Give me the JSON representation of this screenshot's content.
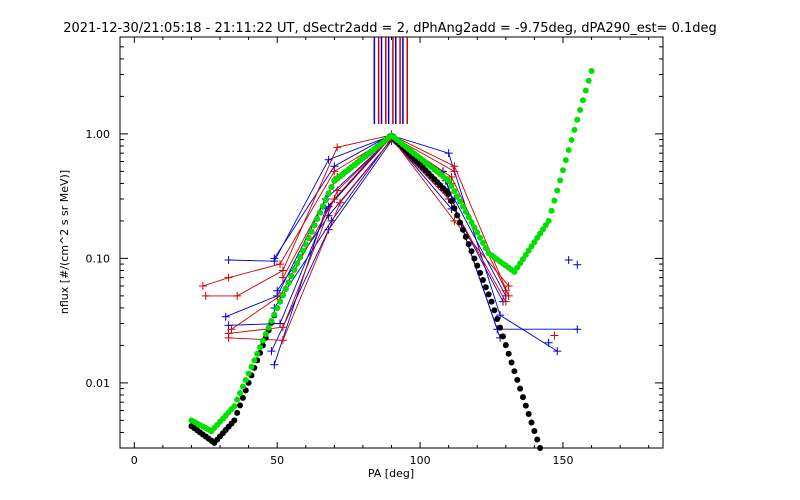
{
  "chart_data": {
    "type": "scatter",
    "title": "2021-12-30/21:05:18 - 21:11:22 UT, dSectr2add = 2, dPhAng2add = -9.75deg, dPA290_est=   0.1deg",
    "xlabel": "PA [deg]",
    "ylabel": "nflux [#/(cm^2 s sr MeV)]",
    "xlim": [
      -5,
      185
    ],
    "ylim": [
      0.003,
      6.0
    ],
    "yscale": "log",
    "grid": false,
    "legend": "none",
    "x_ticks": [
      {
        "value": 0,
        "label": "0"
      },
      {
        "value": 50,
        "label": "50"
      },
      {
        "value": 100,
        "label": "100"
      },
      {
        "value": 150,
        "label": "150"
      }
    ],
    "y_ticks": [
      {
        "value": 0.01,
        "label": "0.01"
      },
      {
        "value": 0.1,
        "label": "0.10"
      },
      {
        "value": 1.0,
        "label": "1.00"
      }
    ],
    "colors": {
      "blue": "#0000cc",
      "red": "#cc0000",
      "green": "#00e000",
      "black": "#000000"
    },
    "vertical_markers": {
      "y_range": [
        1.2,
        6.0
      ],
      "lines": [
        {
          "x": 84,
          "color": "#0000cc"
        },
        {
          "x": 85.5,
          "color": "#cc0000"
        },
        {
          "x": 86.5,
          "color": "#0000cc"
        },
        {
          "x": 88,
          "color": "#cc0000"
        },
        {
          "x": 89,
          "color": "#0000cc"
        },
        {
          "x": 90.5,
          "color": "#cc0000"
        },
        {
          "x": 91.5,
          "color": "#0000cc"
        },
        {
          "x": 93,
          "color": "#cc0000"
        },
        {
          "x": 94,
          "color": "#0000cc"
        },
        {
          "x": 95.5,
          "color": "#cc0000"
        }
      ]
    },
    "data_lines": [
      {
        "color": "#0000cc",
        "points": [
          [
            33,
            0.097
          ],
          [
            49,
            0.095
          ],
          [
            68,
            0.62
          ],
          [
            90,
            0.97
          ],
          [
            110,
            0.7
          ],
          [
            128,
            0.035
          ],
          [
            148,
            0.018
          ]
        ]
      },
      {
        "color": "#0000cc",
        "points": [
          [
            32,
            0.034
          ],
          [
            50,
            0.05
          ],
          [
            67,
            0.3
          ],
          [
            90,
            0.93
          ],
          [
            108,
            0.5
          ],
          [
            127,
            0.027
          ],
          [
            155,
            0.027
          ]
        ]
      },
      {
        "color": "#0000cc",
        "points": [
          [
            33,
            0.029
          ],
          [
            51,
            0.03
          ],
          [
            68,
            0.26
          ],
          [
            90,
            0.95
          ],
          [
            109,
            0.42
          ],
          [
            128,
            0.023
          ]
        ]
      },
      {
        "color": "#0000cc",
        "points": [
          [
            49,
            0.1
          ],
          [
            70,
            0.55
          ],
          [
            90,
            0.99
          ],
          [
            112,
            0.3
          ],
          [
            130,
            0.05
          ]
        ]
      },
      {
        "color": "#0000cc",
        "points": [
          [
            50,
            0.055
          ],
          [
            68,
            0.22
          ],
          [
            90,
            0.9
          ],
          [
            110,
            0.3
          ],
          [
            129,
            0.045
          ]
        ]
      },
      {
        "color": "#0000cc",
        "points": [
          [
            49,
            0.04
          ],
          [
            69,
            0.2
          ],
          [
            90,
            0.92
          ],
          [
            111,
            0.25
          ]
        ]
      },
      {
        "color": "#0000cc",
        "points": [
          [
            48,
            0.018
          ],
          [
            68,
            0.17
          ],
          [
            90,
            0.88
          ],
          [
            109,
            0.35
          ]
        ]
      },
      {
        "color": "#0000cc",
        "points": [
          [
            49,
            0.014
          ],
          [
            67,
            0.25
          ],
          [
            90,
            0.96
          ],
          [
            108,
            0.5
          ]
        ]
      },
      {
        "color": "#cc0000",
        "points": [
          [
            25,
            0.05
          ],
          [
            36,
            0.05
          ],
          [
            52,
            0.08
          ],
          [
            71,
            0.78
          ],
          [
            90,
            0.98
          ],
          [
            112,
            0.55
          ],
          [
            131,
            0.05
          ]
        ]
      },
      {
        "color": "#cc0000",
        "points": [
          [
            24,
            0.06
          ],
          [
            33,
            0.07
          ],
          [
            51,
            0.09
          ],
          [
            70,
            0.5
          ],
          [
            90,
            0.95
          ],
          [
            111,
            0.45
          ],
          [
            130,
            0.055
          ]
        ]
      },
      {
        "color": "#cc0000",
        "points": [
          [
            33,
            0.025
          ],
          [
            52,
            0.028
          ],
          [
            71,
            0.35
          ],
          [
            90,
            0.93
          ],
          [
            112,
            0.2
          ],
          [
            131,
            0.06
          ]
        ]
      },
      {
        "color": "#cc0000",
        "points": [
          [
            33,
            0.023
          ],
          [
            52,
            0.022
          ],
          [
            72,
            0.28
          ],
          [
            90,
            0.9
          ],
          [
            110,
            0.3
          ],
          [
            130,
            0.045
          ]
        ]
      },
      {
        "color": "#cc0000",
        "points": [
          [
            34,
            0.027
          ],
          [
            51,
            0.05
          ],
          [
            70,
            0.3
          ],
          [
            90,
            0.97
          ],
          [
            111,
            0.4
          ]
        ]
      },
      {
        "color": "#cc0000",
        "points": [
          [
            52,
            0.07
          ],
          [
            71,
            0.45
          ],
          [
            90,
            0.96
          ],
          [
            112,
            0.5
          ]
        ]
      }
    ],
    "isolated_points": [
      {
        "color": "#0000cc",
        "x": 152,
        "y": 0.097
      },
      {
        "color": "#0000cc",
        "x": 155,
        "y": 0.089
      },
      {
        "color": "#cc0000",
        "x": 147,
        "y": 0.024
      },
      {
        "color": "#0000cc",
        "x": 145,
        "y": 0.021
      }
    ],
    "black_fit": {
      "color": "#000000",
      "x_range": [
        20,
        142
      ],
      "description_values": [
        [
          20,
          0.0045
        ],
        [
          28,
          0.0033
        ],
        [
          35,
          0.005
        ],
        [
          50,
          0.04
        ],
        [
          70,
          0.42
        ],
        [
          90,
          0.97
        ],
        [
          110,
          0.33
        ],
        [
          125,
          0.045
        ],
        [
          135,
          0.009
        ],
        [
          142,
          0.003
        ]
      ]
    },
    "green_fit": {
      "color": "#00e000",
      "x_range": [
        20,
        160
      ],
      "description_values": [
        [
          20,
          0.005
        ],
        [
          27,
          0.0041
        ],
        [
          35,
          0.0065
        ],
        [
          50,
          0.04
        ],
        [
          70,
          0.42
        ],
        [
          90,
          0.97
        ],
        [
          110,
          0.42
        ],
        [
          124,
          0.11
        ],
        [
          133,
          0.078
        ],
        [
          145,
          0.2
        ],
        [
          155,
          1.3
        ],
        [
          160,
          3.2
        ]
      ]
    }
  }
}
